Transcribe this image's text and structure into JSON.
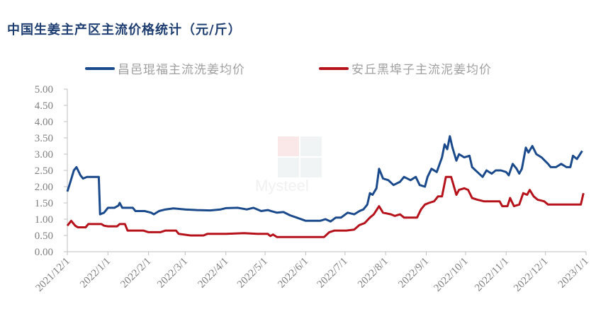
{
  "chart_data": {
    "type": "line",
    "title": "中国生姜主产区主流价格统计（元/斤）",
    "xlabel": "",
    "ylabel": "",
    "ylim": [
      0,
      5
    ],
    "yticks": [
      "0.00",
      "0.50",
      "1.00",
      "1.50",
      "2.00",
      "2.50",
      "3.00",
      "3.50",
      "4.00",
      "4.50",
      "5.00"
    ],
    "xticks": [
      "2021/12/1",
      "2022/1/1",
      "2022/2/1",
      "2022/3/1",
      "2022/4/1",
      "2022/5/1",
      "2022/6/1",
      "2022/7/1",
      "2022/8/1",
      "2022/9/1",
      "2022/10/1",
      "2022/11/1",
      "2022/12/1",
      "2023/1/1"
    ],
    "grid": false,
    "legend_position": "top",
    "colors": {
      "series1": "#1b4a8c",
      "series2": "#b5121b"
    },
    "series": [
      {
        "name": "昌邑琨福主流洗姜均价",
        "points": [
          [
            "2021/12/1",
            1.85
          ],
          [
            "2021/12/3",
            2.1
          ],
          [
            "2021/12/6",
            2.5
          ],
          [
            "2021/12/8",
            2.6
          ],
          [
            "2021/12/11",
            2.35
          ],
          [
            "2021/12/13",
            2.25
          ],
          [
            "2021/12/16",
            2.3
          ],
          [
            "2021/12/25",
            2.3
          ],
          [
            "2021/12/26",
            1.15
          ],
          [
            "2021/12/29",
            1.2
          ],
          [
            "2022/1/1",
            1.35
          ],
          [
            "2022/1/6",
            1.35
          ],
          [
            "2022/1/9",
            1.42
          ],
          [
            "2022/1/10",
            1.5
          ],
          [
            "2022/1/12",
            1.35
          ],
          [
            "2022/1/20",
            1.35
          ],
          [
            "2022/1/22",
            1.25
          ],
          [
            "2022/1/29",
            1.25
          ],
          [
            "2022/2/3",
            1.2
          ],
          [
            "2022/2/5",
            1.15
          ],
          [
            "2022/2/9",
            1.25
          ],
          [
            "2022/2/14",
            1.3
          ],
          [
            "2022/2/20",
            1.33
          ],
          [
            "2022/3/1",
            1.3
          ],
          [
            "2022/3/10",
            1.28
          ],
          [
            "2022/3/20",
            1.27
          ],
          [
            "2022/3/28",
            1.3
          ],
          [
            "2022/4/1",
            1.34
          ],
          [
            "2022/4/10",
            1.35
          ],
          [
            "2022/4/17",
            1.3
          ],
          [
            "2022/4/22",
            1.35
          ],
          [
            "2022/4/28",
            1.25
          ],
          [
            "2022/5/3",
            1.28
          ],
          [
            "2022/5/10",
            1.2
          ],
          [
            "2022/5/15",
            1.22
          ],
          [
            "2022/5/20",
            1.12
          ],
          [
            "2022/5/25",
            1.05
          ],
          [
            "2022/6/1",
            0.95
          ],
          [
            "2022/6/12",
            0.95
          ],
          [
            "2022/6/16",
            1.0
          ],
          [
            "2022/6/20",
            0.93
          ],
          [
            "2022/6/24",
            1.05
          ],
          [
            "2022/6/28",
            1.05
          ],
          [
            "2022/7/3",
            1.2
          ],
          [
            "2022/7/8",
            1.15
          ],
          [
            "2022/7/12",
            1.25
          ],
          [
            "2022/7/15",
            1.3
          ],
          [
            "2022/7/18",
            1.45
          ],
          [
            "2022/7/20",
            1.8
          ],
          [
            "2022/7/22",
            1.75
          ],
          [
            "2022/7/25",
            1.95
          ],
          [
            "2022/7/27",
            2.55
          ],
          [
            "2022/7/30",
            2.25
          ],
          [
            "2022/8/3",
            2.2
          ],
          [
            "2022/8/7",
            2.05
          ],
          [
            "2022/8/12",
            2.15
          ],
          [
            "2022/8/15",
            2.3
          ],
          [
            "2022/8/20",
            2.2
          ],
          [
            "2022/8/24",
            2.3
          ],
          [
            "2022/8/27",
            2.05
          ],
          [
            "2022/8/31",
            2.0
          ],
          [
            "2022/9/2",
            2.3
          ],
          [
            "2022/9/5",
            2.55
          ],
          [
            "2022/9/9",
            2.45
          ],
          [
            "2022/9/13",
            2.9
          ],
          [
            "2022/9/15",
            3.3
          ],
          [
            "2022/9/17",
            3.15
          ],
          [
            "2022/9/19",
            3.55
          ],
          [
            "2022/9/21",
            3.2
          ],
          [
            "2022/9/24",
            2.8
          ],
          [
            "2022/9/26",
            3.0
          ],
          [
            "2022/9/30",
            2.9
          ],
          [
            "2022/10/4",
            2.95
          ],
          [
            "2022/10/6",
            2.6
          ],
          [
            "2022/10/10",
            2.45
          ],
          [
            "2022/10/14",
            2.3
          ],
          [
            "2022/10/17",
            2.5
          ],
          [
            "2022/10/21",
            2.4
          ],
          [
            "2022/10/24",
            2.5
          ],
          [
            "2022/10/28",
            2.5
          ],
          [
            "2022/11/1",
            2.45
          ],
          [
            "2022/11/3",
            2.35
          ],
          [
            "2022/11/6",
            2.7
          ],
          [
            "2022/11/9",
            2.55
          ],
          [
            "2022/11/11",
            2.4
          ],
          [
            "2022/11/13",
            2.55
          ],
          [
            "2022/11/16",
            3.2
          ],
          [
            "2022/11/18",
            3.05
          ],
          [
            "2022/11/21",
            3.25
          ],
          [
            "2022/11/24",
            3.0
          ],
          [
            "2022/11/28",
            2.9
          ],
          [
            "2022/12/3",
            2.7
          ],
          [
            "2022/12/5",
            2.6
          ],
          [
            "2022/12/9",
            2.6
          ],
          [
            "2022/12/13",
            2.7
          ],
          [
            "2022/12/17",
            2.6
          ],
          [
            "2022/12/20",
            2.6
          ],
          [
            "2022/12/22",
            2.95
          ],
          [
            "2022/12/25",
            2.85
          ],
          [
            "2022/12/29",
            3.1
          ]
        ]
      },
      {
        "name": "安丘黑埠子主流泥姜均价",
        "points": [
          [
            "2021/12/1",
            0.8
          ],
          [
            "2021/12/4",
            0.95
          ],
          [
            "2021/12/7",
            0.8
          ],
          [
            "2021/12/9",
            0.75
          ],
          [
            "2021/12/15",
            0.75
          ],
          [
            "2021/12/17",
            0.85
          ],
          [
            "2021/12/27",
            0.85
          ],
          [
            "2021/12/29",
            0.8
          ],
          [
            "2022/1/1",
            0.78
          ],
          [
            "2022/1/8",
            0.78
          ],
          [
            "2022/1/10",
            0.85
          ],
          [
            "2022/1/14",
            0.85
          ],
          [
            "2022/1/16",
            0.65
          ],
          [
            "2022/1/28",
            0.65
          ],
          [
            "2022/2/1",
            0.6
          ],
          [
            "2022/2/10",
            0.6
          ],
          [
            "2022/2/14",
            0.65
          ],
          [
            "2022/2/22",
            0.65
          ],
          [
            "2022/2/24",
            0.55
          ],
          [
            "2022/3/5",
            0.5
          ],
          [
            "2022/3/15",
            0.5
          ],
          [
            "2022/3/18",
            0.55
          ],
          [
            "2022/4/1",
            0.55
          ],
          [
            "2022/4/15",
            0.57
          ],
          [
            "2022/4/25",
            0.55
          ],
          [
            "2022/5/3",
            0.55
          ],
          [
            "2022/5/5",
            0.48
          ],
          [
            "2022/5/7",
            0.53
          ],
          [
            "2022/5/10",
            0.45
          ],
          [
            "2022/5/31",
            0.45
          ],
          [
            "2022/6/15",
            0.45
          ],
          [
            "2022/6/19",
            0.6
          ],
          [
            "2022/6/23",
            0.65
          ],
          [
            "2022/7/2",
            0.65
          ],
          [
            "2022/7/8",
            0.68
          ],
          [
            "2022/7/12",
            0.82
          ],
          [
            "2022/7/16",
            0.88
          ],
          [
            "2022/7/20",
            1.05
          ],
          [
            "2022/7/23",
            1.15
          ],
          [
            "2022/7/27",
            1.4
          ],
          [
            "2022/7/30",
            1.2
          ],
          [
            "2022/8/5",
            1.15
          ],
          [
            "2022/8/8",
            1.1
          ],
          [
            "2022/8/12",
            1.15
          ],
          [
            "2022/8/15",
            1.05
          ],
          [
            "2022/8/20",
            1.05
          ],
          [
            "2022/8/25",
            1.05
          ],
          [
            "2022/8/28",
            1.3
          ],
          [
            "2022/8/31",
            1.45
          ],
          [
            "2022/9/3",
            1.5
          ],
          [
            "2022/9/7",
            1.55
          ],
          [
            "2022/9/10",
            1.7
          ],
          [
            "2022/9/13",
            1.7
          ],
          [
            "2022/9/16",
            2.3
          ],
          [
            "2022/9/20",
            2.3
          ],
          [
            "2022/9/24",
            1.75
          ],
          [
            "2022/9/26",
            1.9
          ],
          [
            "2022/9/30",
            1.95
          ],
          [
            "2022/10/3",
            1.9
          ],
          [
            "2022/10/6",
            1.65
          ],
          [
            "2022/10/10",
            1.6
          ],
          [
            "2022/10/15",
            1.55
          ],
          [
            "2022/10/22",
            1.55
          ],
          [
            "2022/10/27",
            1.55
          ],
          [
            "2022/10/29",
            1.4
          ],
          [
            "2022/11/2",
            1.4
          ],
          [
            "2022/11/4",
            1.65
          ],
          [
            "2022/11/7",
            1.4
          ],
          [
            "2022/11/11",
            1.45
          ],
          [
            "2022/11/14",
            1.8
          ],
          [
            "2022/11/17",
            1.75
          ],
          [
            "2022/11/19",
            1.9
          ],
          [
            "2022/11/22",
            1.7
          ],
          [
            "2022/11/25",
            1.6
          ],
          [
            "2022/11/30",
            1.55
          ],
          [
            "2022/12/3",
            1.45
          ],
          [
            "2022/12/28",
            1.45
          ],
          [
            "2022/12/30",
            1.8
          ]
        ]
      }
    ]
  },
  "watermark": {
    "line1": "我的",
    "line2": "钢铁",
    "line3": "Mysteel"
  }
}
